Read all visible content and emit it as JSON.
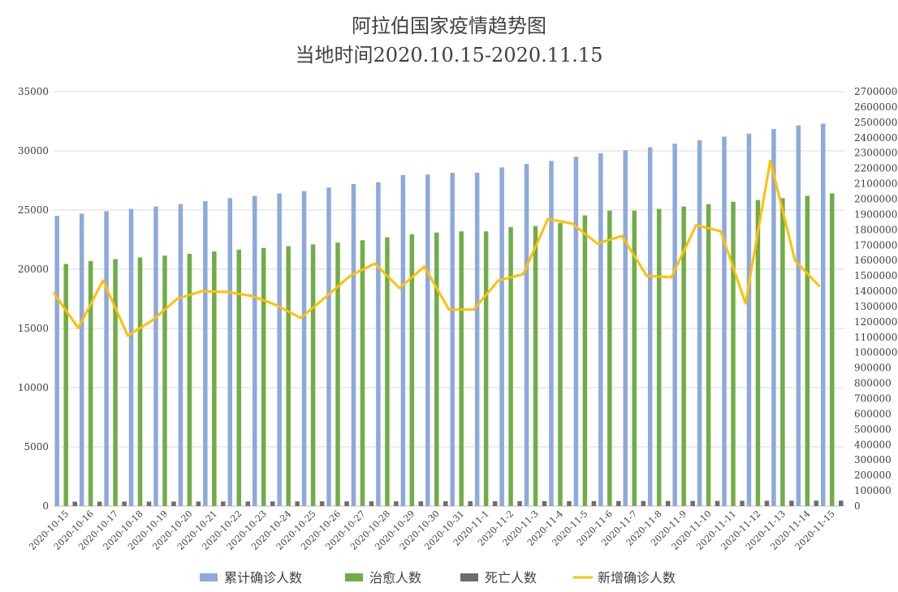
{
  "chart_data": {
    "type": "bar",
    "title_lines": [
      "阿拉伯国家疫情趋势图",
      "当地时间2020.10.15-2020.11.15"
    ],
    "categories": [
      "2020-10-15",
      "2020-10-16",
      "2020-10-17",
      "2020-10-18",
      "2020-10-19",
      "2020-10-20",
      "2020-10-21",
      "2020-10-22",
      "2020-10-23",
      "2020-10-24",
      "2020-10-25",
      "2020-10-26",
      "2020-10-27",
      "2020-10-28",
      "2020-10-29",
      "2020-10-30",
      "2020-10-31",
      "2020-11-1",
      "2020-11-2",
      "2020-11-3",
      "2020-11-4",
      "2020-11-5",
      "2020-11-6",
      "2020-11-7",
      "2020-11-8",
      "2020-11-9",
      "2020-11-10",
      "2020-11-11",
      "2020-11-12",
      "2020-11-13",
      "2020-11-14",
      "2020-11-15"
    ],
    "y_left": {
      "min": 0,
      "max": 35000,
      "step": 5000,
      "ticks": [
        "0",
        "5000",
        "10000",
        "15000",
        "20000",
        "25000",
        "30000",
        "35000"
      ]
    },
    "y_right": {
      "min": 0,
      "max": 2700000,
      "step": 100000,
      "ticks": [
        "0",
        "100000",
        "200000",
        "300000",
        "400000",
        "500000",
        "600000",
        "700000",
        "800000",
        "900000",
        "1000000",
        "1100000",
        "1200000",
        "1300000",
        "1400000",
        "1500000",
        "1600000",
        "1700000",
        "1800000",
        "1900000",
        "2000000",
        "2100000",
        "2200000",
        "2300000",
        "2400000",
        "2500000",
        "2600000",
        "2700000"
      ]
    },
    "grid": true,
    "legend_position": "bottom",
    "series": [
      {
        "name": "累计确诊人数",
        "type": "bar",
        "axis": "left",
        "color": "#8EA9DB",
        "values": [
          24500,
          24700,
          24900,
          25100,
          25300,
          25500,
          25750,
          26000,
          26200,
          26400,
          26600,
          26900,
          27200,
          27350,
          27950,
          28000,
          28150,
          28150,
          28600,
          28900,
          29150,
          29500,
          29800,
          30050,
          30300,
          30600,
          30900,
          31200,
          31450,
          31850,
          32150,
          32300
        ]
      },
      {
        "name": "治愈人数",
        "type": "bar",
        "axis": "left",
        "color": "#70AD47",
        "values": [
          20450,
          20700,
          20850,
          21000,
          21150,
          21300,
          21500,
          21650,
          21800,
          21950,
          22100,
          22250,
          22450,
          22700,
          22950,
          23100,
          23200,
          23200,
          23550,
          23650,
          23900,
          24550,
          24950,
          24950,
          25100,
          25300,
          25500,
          25700,
          25850,
          26000,
          26200,
          26400
        ]
      },
      {
        "name": "死亡人数",
        "type": "bar",
        "axis": "left",
        "color": "#6D6D6D",
        "values": [
          370,
          370,
          375,
          375,
          380,
          380,
          385,
          385,
          390,
          390,
          395,
          395,
          400,
          400,
          400,
          405,
          405,
          405,
          410,
          410,
          415,
          420,
          420,
          425,
          430,
          430,
          435,
          440,
          445,
          450,
          455,
          460
        ]
      },
      {
        "name": "新增确诊人数",
        "type": "line",
        "axis": "right",
        "color": "#FFC000",
        "values": [
          1390000,
          1160000,
          1470000,
          1110000,
          1210000,
          1350000,
          1400000,
          1395000,
          1370000,
          1310000,
          1225000,
          1360000,
          1500000,
          1580000,
          1420000,
          1560000,
          1280000,
          1280000,
          1470000,
          1510000,
          1870000,
          1840000,
          1710000,
          1760000,
          1500000,
          1490000,
          1830000,
          1790000,
          1320000,
          2250000,
          1600000,
          1430000
        ]
      }
    ]
  }
}
